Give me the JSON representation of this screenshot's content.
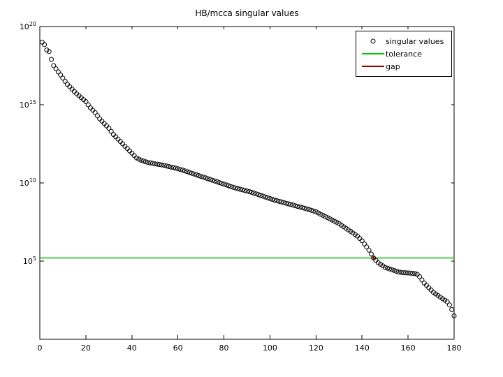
{
  "figure": {
    "background_color": "#ffffff"
  },
  "chart_data": {
    "type": "scatter",
    "title": "HB/mcca singular values",
    "xlabel": "",
    "ylabel": "",
    "y_scale": "log10",
    "x_lim": [
      0,
      180
    ],
    "y_lim_log10": [
      0,
      20
    ],
    "x_ticks": [
      0,
      20,
      40,
      60,
      80,
      100,
      120,
      140,
      160,
      180
    ],
    "y_tick_exponents": [
      20,
      15,
      10,
      5
    ],
    "grid": false,
    "marker": {
      "shape": "circle",
      "edge_color": "#000000",
      "fill": "none"
    },
    "series_name": "singular values",
    "x_start_index": 1,
    "log10_singular_values": [
      19.0,
      18.85,
      18.5,
      18.4,
      17.9,
      17.5,
      17.3,
      17.1,
      16.9,
      16.7,
      16.5,
      16.3,
      16.15,
      16.0,
      15.85,
      15.7,
      15.58,
      15.45,
      15.33,
      15.2,
      15.0,
      14.8,
      14.65,
      14.5,
      14.3,
      14.1,
      13.95,
      13.8,
      13.65,
      13.5,
      13.3,
      13.1,
      12.95,
      12.8,
      12.65,
      12.5,
      12.35,
      12.2,
      12.05,
      11.9,
      11.75,
      11.6,
      11.52,
      11.45,
      11.4,
      11.35,
      11.31,
      11.28,
      11.25,
      11.22,
      11.2,
      11.18,
      11.15,
      11.12,
      11.08,
      11.05,
      11.01,
      10.98,
      10.94,
      10.9,
      10.86,
      10.82,
      10.77,
      10.72,
      10.67,
      10.62,
      10.57,
      10.52,
      10.47,
      10.42,
      10.37,
      10.32,
      10.27,
      10.22,
      10.17,
      10.12,
      10.07,
      10.02,
      9.97,
      9.92,
      9.87,
      9.82,
      9.77,
      9.72,
      9.68,
      9.64,
      9.6,
      9.56,
      9.52,
      9.48,
      9.44,
      9.4,
      9.35,
      9.3,
      9.25,
      9.2,
      9.15,
      9.1,
      9.05,
      9.0,
      8.95,
      8.9,
      8.86,
      8.82,
      8.78,
      8.74,
      8.7,
      8.66,
      8.62,
      8.58,
      8.54,
      8.5,
      8.46,
      8.42,
      8.38,
      8.34,
      8.3,
      8.25,
      8.2,
      8.15,
      8.08,
      8.0,
      7.93,
      7.85,
      7.78,
      7.7,
      7.63,
      7.55,
      7.48,
      7.4,
      7.3,
      7.2,
      7.1,
      7.0,
      6.9,
      6.8,
      6.7,
      6.6,
      6.45,
      6.3,
      6.1,
      5.9,
      5.7,
      5.45,
      5.2,
      5.05,
      4.9,
      4.8,
      4.7,
      4.6,
      4.55,
      4.5,
      4.45,
      4.4,
      4.35,
      4.3,
      4.28,
      4.26,
      4.25,
      4.24,
      4.23,
      4.22,
      4.2,
      4.15,
      4.0,
      3.8,
      3.6,
      3.45,
      3.3,
      3.15,
      3.0,
      2.9,
      2.8,
      2.7,
      2.6,
      2.5,
      2.4,
      2.2,
      1.9,
      1.5
    ],
    "tolerance": {
      "label": "tolerance",
      "log10_value": 5.2,
      "color": "#00c400"
    },
    "gap": {
      "label": "gap",
      "x": 145,
      "log10_from": 5.32,
      "log10_to": 5.08,
      "color": "#a40000"
    },
    "legend": {
      "position": "top-right",
      "entries": [
        {
          "label": "singular values",
          "swatch": "circle-marker",
          "color": "#000000"
        },
        {
          "label": "tolerance",
          "swatch": "line",
          "color": "#00c400"
        },
        {
          "label": "gap",
          "swatch": "line",
          "color": "#a40000"
        }
      ]
    }
  }
}
